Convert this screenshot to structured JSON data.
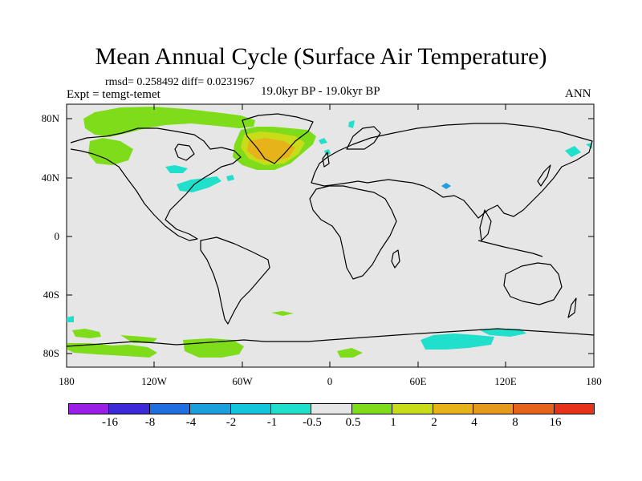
{
  "title": "Mean Annual Cycle (Surface Air Temperature)",
  "stats_line": "rmsd= 0.258492  diff= 0.0231967",
  "experiment_label": "Expt = temgt-temet",
  "period_label": "19.0kyr BP - 19.0kyr BP",
  "season_label": "ANN",
  "map": {
    "background_color": "#e6e6e6",
    "lat_ticks": [
      "80N",
      "40N",
      "0",
      "40S",
      "80S"
    ],
    "lon_ticks": [
      "180",
      "120W",
      "60W",
      "0",
      "60E",
      "120E",
      "180"
    ]
  },
  "colorbar": {
    "colors": [
      "#9a1ee6",
      "#3c2ad8",
      "#1f6fe0",
      "#1aa0dc",
      "#13c6dc",
      "#20e0cc",
      "#e6e6e6",
      "#7fdc1a",
      "#c8dc1a",
      "#e6b41a",
      "#e69a1a",
      "#e6641a",
      "#e6321a"
    ],
    "labels": [
      "-16",
      "-8",
      "-4",
      "-2",
      "-1",
      "-0.5",
      "0.5",
      "1",
      "2",
      "4",
      "8",
      "16"
    ]
  }
}
